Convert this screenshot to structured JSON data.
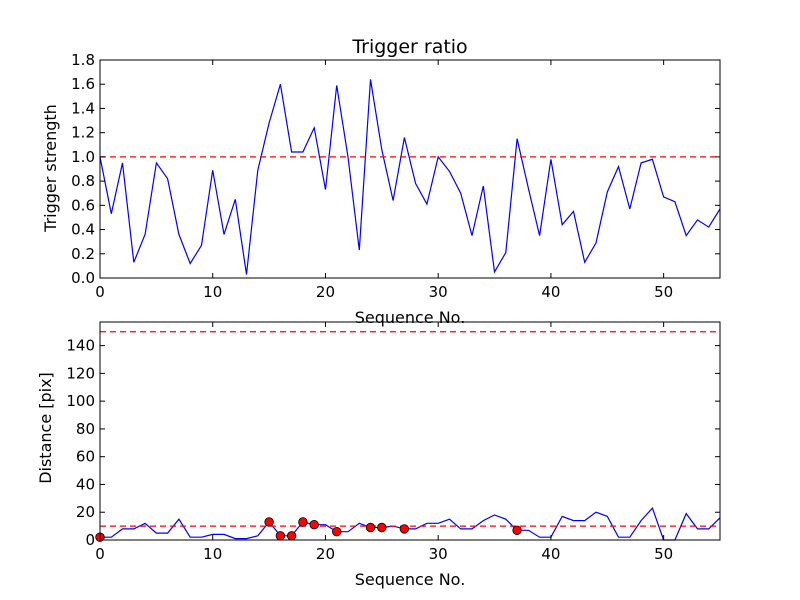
{
  "chart_data": [
    {
      "type": "line",
      "title": "Trigger ratio",
      "xlabel": "Sequence No.",
      "ylabel": "Trigger strength",
      "xlim": [
        0,
        55
      ],
      "ylim": [
        0,
        1.8
      ],
      "xticks": [
        "0",
        "10",
        "20",
        "30",
        "40",
        "50"
      ],
      "yticks": [
        "0.0",
        "0.2",
        "0.4",
        "0.6",
        "0.8",
        "1.0",
        "1.2",
        "1.4",
        "1.6",
        "1.8"
      ],
      "threshold": 1.0,
      "color": "#0000ff",
      "threshold_color": "#ff0000",
      "x": [
        0,
        1,
        2,
        3,
        4,
        5,
        6,
        7,
        8,
        9,
        10,
        11,
        12,
        13,
        14,
        15,
        16,
        17,
        18,
        19,
        20,
        21,
        22,
        23,
        24,
        25,
        26,
        27,
        28,
        29,
        30,
        31,
        32,
        33,
        34,
        35,
        36,
        37,
        38,
        39,
        40,
        41,
        42,
        43,
        44,
        45,
        46,
        47,
        48,
        49,
        50,
        51,
        52,
        53,
        54,
        55
      ],
      "values": [
        1.0,
        0.53,
        0.95,
        0.13,
        0.36,
        0.95,
        0.82,
        0.36,
        0.12,
        0.27,
        0.89,
        0.36,
        0.65,
        0.03,
        0.89,
        1.28,
        1.6,
        1.04,
        1.04,
        1.24,
        0.73,
        1.59,
        1.0,
        0.23,
        1.64,
        1.06,
        0.64,
        1.16,
        0.78,
        0.61,
        1.0,
        0.88,
        0.7,
        0.35,
        0.76,
        0.05,
        0.21,
        1.15,
        0.74,
        0.35,
        0.98,
        0.44,
        0.55,
        0.13,
        0.29,
        0.71,
        0.92,
        0.57,
        0.95,
        0.98,
        0.67,
        0.63,
        0.35,
        0.48,
        0.42,
        0.57
      ]
    },
    {
      "type": "line",
      "title": "",
      "xlabel": "Sequence No.",
      "ylabel": "Distance [pix]",
      "xlim": [
        0,
        55
      ],
      "ylim": [
        0,
        157
      ],
      "xticks": [
        "0",
        "10",
        "20",
        "30",
        "40",
        "50"
      ],
      "yticks": [
        "0",
        "20",
        "40",
        "60",
        "80",
        "100",
        "120",
        "140"
      ],
      "thresholds": [
        10,
        150
      ],
      "color": "#0000ff",
      "threshold_color": "#ff0000",
      "marker_color": "#ff0000",
      "x": [
        0,
        1,
        2,
        3,
        4,
        5,
        6,
        7,
        8,
        9,
        10,
        11,
        12,
        13,
        14,
        15,
        16,
        17,
        18,
        19,
        20,
        21,
        22,
        23,
        24,
        25,
        26,
        27,
        28,
        29,
        30,
        31,
        32,
        33,
        34,
        35,
        36,
        37,
        38,
        39,
        40,
        41,
        42,
        43,
        44,
        45,
        46,
        47,
        48,
        49,
        50,
        51,
        52,
        53,
        54,
        55
      ],
      "values": [
        2,
        2,
        8,
        8,
        12,
        5,
        5,
        15,
        2,
        2,
        4,
        4,
        1,
        1,
        3,
        13,
        3,
        3,
        13,
        11,
        11,
        6,
        6,
        12,
        9,
        9,
        10,
        8,
        8,
        12,
        12,
        15,
        8,
        8,
        14,
        18,
        15,
        7,
        7,
        2,
        2,
        17,
        14,
        14,
        20,
        17,
        2,
        2,
        14,
        23,
        0,
        0,
        19,
        8,
        8,
        16
      ],
      "markers": [
        {
          "x": 0,
          "y": 2
        },
        {
          "x": 15,
          "y": 13
        },
        {
          "x": 16,
          "y": 3
        },
        {
          "x": 17,
          "y": 3
        },
        {
          "x": 18,
          "y": 13
        },
        {
          "x": 19,
          "y": 11
        },
        {
          "x": 21,
          "y": 6
        },
        {
          "x": 24,
          "y": 9
        },
        {
          "x": 25,
          "y": 9
        },
        {
          "x": 27,
          "y": 8
        },
        {
          "x": 37,
          "y": 7
        }
      ]
    }
  ]
}
